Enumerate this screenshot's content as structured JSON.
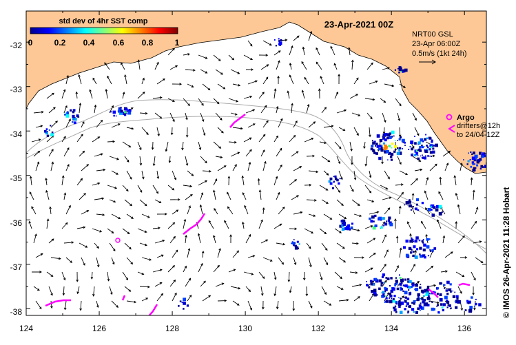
{
  "map": {
    "date_title": "23-Apr-2021 00Z",
    "colorbar": {
      "title": "std dev of 4hr SST comp",
      "ticks": [
        "0",
        "0.2",
        "0.4",
        "0.6",
        "0.8",
        "1"
      ],
      "range": [
        0,
        1
      ]
    },
    "lat_labels": [
      "-32",
      "-33",
      "-34",
      "-35",
      "-36",
      "-37",
      "-38"
    ],
    "lon_labels": [
      "124",
      "126",
      "128",
      "130",
      "132",
      "134",
      "136"
    ],
    "extent": {
      "lon": [
        124,
        136.6
      ],
      "lat": [
        -38.15,
        -31.3
      ]
    },
    "current_legend": {
      "line1": "NRT00 GSL",
      "line2": "23-Apr 06:00Z",
      "line3": "0.5m/s (1kt 24h)"
    },
    "argo_legend": {
      "label": "Argo",
      "drifters_line1": "drifters@12h",
      "drifters_line2": "to 24/04-12Z"
    },
    "credit": "© IMOS 26-Apr-2021 11:28 Hobart",
    "colors": {
      "land": "#fdc896",
      "ocean": "#ffffff",
      "drifter": "#ff00ff",
      "bathymetry": "#aaaaaa",
      "arrows": "#000000"
    }
  }
}
